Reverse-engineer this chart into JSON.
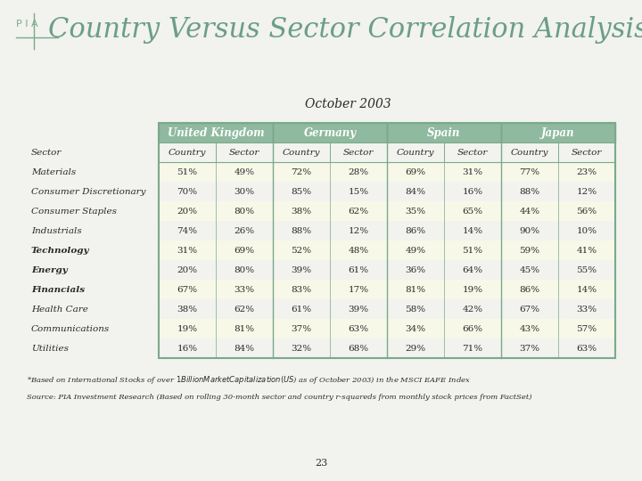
{
  "title": "Country Versus Sector Correlation Analysis",
  "subtitle": "October 2003",
  "page_number": "23",
  "footnote1": "*Based on International Stocks of over $1 Billion Market Capitalization (US$) as of October 2003) in the MSCI EAFE Index",
  "footnote2": "Source: PIA Investment Research (Based on rolling 30-month sector and country r-squareds from monthly stock prices from FactSet)",
  "sectors": [
    "Materials",
    "Consumer Discretionary",
    "Consumer Staples",
    "Industrials",
    "Technology",
    "Energy",
    "Financials",
    "Health Care",
    "Communications",
    "Utilities"
  ],
  "countries": [
    "United Kingdom",
    "Germany",
    "Spain",
    "Japan"
  ],
  "col_headers": [
    "Country",
    "Sector"
  ],
  "data": {
    "United Kingdom": {
      "Country": [
        "51%",
        "70%",
        "20%",
        "74%",
        "31%",
        "20%",
        "67%",
        "38%",
        "19%",
        "16%"
      ],
      "Sector": [
        "49%",
        "30%",
        "80%",
        "26%",
        "69%",
        "80%",
        "33%",
        "62%",
        "81%",
        "84%"
      ]
    },
    "Germany": {
      "Country": [
        "72%",
        "85%",
        "38%",
        "88%",
        "52%",
        "39%",
        "83%",
        "61%",
        "37%",
        "32%"
      ],
      "Sector": [
        "28%",
        "15%",
        "62%",
        "12%",
        "48%",
        "61%",
        "17%",
        "39%",
        "63%",
        "68%"
      ]
    },
    "Spain": {
      "Country": [
        "69%",
        "84%",
        "35%",
        "86%",
        "49%",
        "36%",
        "81%",
        "58%",
        "34%",
        "29%"
      ],
      "Sector": [
        "31%",
        "16%",
        "65%",
        "14%",
        "51%",
        "64%",
        "19%",
        "42%",
        "66%",
        "71%"
      ]
    },
    "Japan": {
      "Country": [
        "77%",
        "88%",
        "44%",
        "90%",
        "59%",
        "45%",
        "86%",
        "67%",
        "43%",
        "37%"
      ],
      "Sector": [
        "23%",
        "12%",
        "56%",
        "10%",
        "41%",
        "55%",
        "14%",
        "33%",
        "57%",
        "63%"
      ]
    }
  },
  "bg_color": "#f2f2ee",
  "header_bg": "#8fba9f",
  "table_border": "#7aaa8a",
  "subheader_bg": "#f2f2ee",
  "title_color": "#6a9e8a",
  "text_color": "#2a2a2a",
  "pia_color": "#7aaa8a",
  "row_colors": [
    "#f8f8e8",
    "#f2f2ee",
    "#f8f8e8",
    "#f2f2ee",
    "#f8f8e8",
    "#f2f2ee",
    "#f8f8e8",
    "#f2f2ee",
    "#f8f8e8",
    "#f2f2ee"
  ],
  "footnote_color": "#2a2a2a"
}
